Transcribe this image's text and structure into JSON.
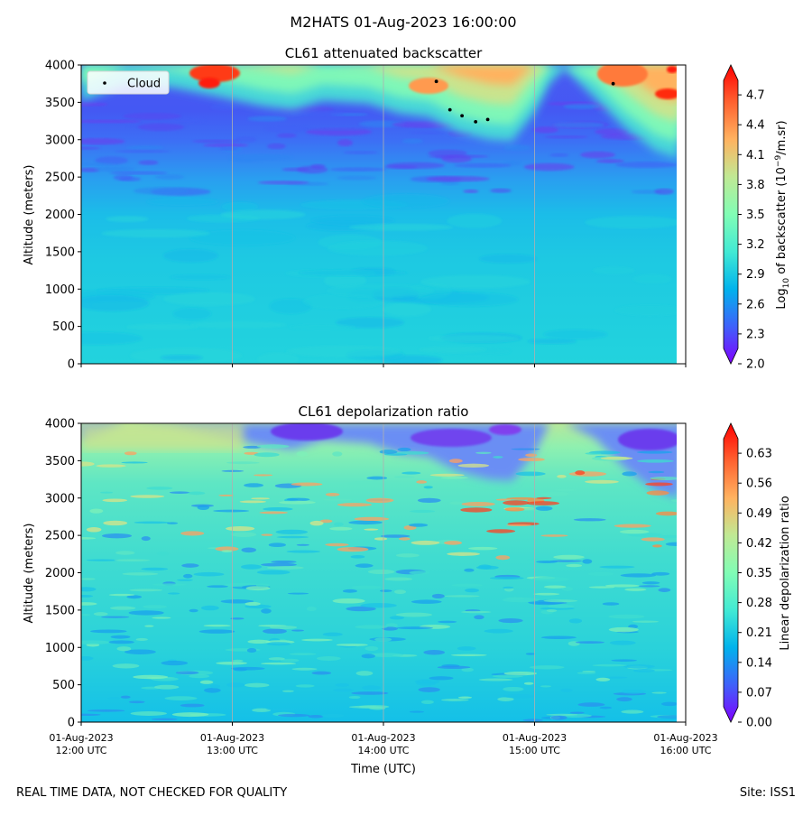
{
  "figure": {
    "suptitle": "M2HATS 01-Aug-2023 16:00:00",
    "footer_left": "REAL TIME DATA, NOT CHECKED FOR QUALITY",
    "footer_right": "Site: ISS1"
  },
  "colors": {
    "rainbow": [
      "#7f00ff",
      "#3f61fa",
      "#01b3ec",
      "#42ead4",
      "#81fdb5",
      "#c0e994",
      "#ffb360",
      "#ff6230",
      "#ff0000"
    ],
    "grid": "#b0b0b0"
  },
  "chart_data": [
    {
      "type": "heatmap",
      "title": "CL61 attenuated backscatter",
      "ylabel": "Altitude (meters)",
      "xlabel": "",
      "ylim": [
        0,
        4000
      ],
      "yticks": [
        0,
        500,
        1000,
        1500,
        2000,
        2500,
        3000,
        3500,
        4000
      ],
      "xticks": [
        "01-Aug-2023 12:00 UTC",
        "01-Aug-2023 13:00 UTC",
        "01-Aug-2023 14:00 UTC",
        "01-Aug-2023 15:00 UTC",
        "01-Aug-2023 16:00 UTC"
      ],
      "xlim_hours": [
        12,
        16
      ],
      "colorbar": {
        "label_prefix": "Log",
        "label_sub": "10",
        "label_mid": " of backscatter (10",
        "label_sup": "−9",
        "label_end": "/m.sr)",
        "vmin": 2.0,
        "vmax": 5.0,
        "ticks": [
          "2.0",
          "2.3",
          "2.6",
          "2.9",
          "3.2",
          "3.5",
          "3.8",
          "4.1",
          "4.4",
          "4.7"
        ],
        "tick_values": [
          2.0,
          2.3,
          2.6,
          2.9,
          3.2,
          3.5,
          3.8,
          4.1,
          4.4,
          4.7
        ]
      },
      "legend": {
        "label": "Cloud",
        "location": "upper-left"
      },
      "cloud_base_points": [
        {
          "hour": 14.35,
          "altitude": 3780
        },
        {
          "hour": 14.44,
          "altitude": 3400
        },
        {
          "hour": 14.52,
          "altitude": 3320
        },
        {
          "hour": 14.61,
          "altitude": 3240
        },
        {
          "hour": 14.69,
          "altitude": 3270
        },
        {
          "hour": 15.52,
          "altitude": 3750
        }
      ],
      "cloud_top_boundary": {
        "hours": [
          12.0,
          12.3,
          12.6,
          12.9,
          13.2,
          13.4,
          13.6,
          13.9,
          14.1,
          14.3,
          14.5,
          14.7,
          14.85,
          15.0,
          15.1,
          15.2,
          15.4,
          15.6,
          15.8,
          15.95
        ],
        "altitudes": [
          3520,
          3750,
          3700,
          3580,
          3450,
          3400,
          3520,
          3480,
          3350,
          3300,
          3100,
          3000,
          2980,
          3350,
          3750,
          3950,
          3550,
          3150,
          2850,
          2750
        ]
      }
    },
    {
      "type": "heatmap",
      "title": "CL61 depolarization ratio",
      "ylabel": "Altitude (meters)",
      "xlabel": "Time (UTC)",
      "ylim": [
        0,
        4000
      ],
      "yticks": [
        0,
        500,
        1000,
        1500,
        2000,
        2500,
        3000,
        3500,
        4000
      ],
      "xticks": [
        "01-Aug-2023 12:00 UTC",
        "01-Aug-2023 13:00 UTC",
        "01-Aug-2023 14:00 UTC",
        "01-Aug-2023 15:00 UTC",
        "01-Aug-2023 16:00 UTC"
      ],
      "xlim_hours": [
        12,
        16
      ],
      "colorbar": {
        "label": "Linear depolarization ratio",
        "vmin": 0.0,
        "vmax": 0.7,
        "ticks": [
          "0.00",
          "0.07",
          "0.14",
          "0.21",
          "0.28",
          "0.35",
          "0.42",
          "0.49",
          "0.56",
          "0.63"
        ],
        "tick_values": [
          0.0,
          0.07,
          0.14,
          0.21,
          0.28,
          0.35,
          0.42,
          0.49,
          0.56,
          0.63
        ]
      }
    }
  ]
}
